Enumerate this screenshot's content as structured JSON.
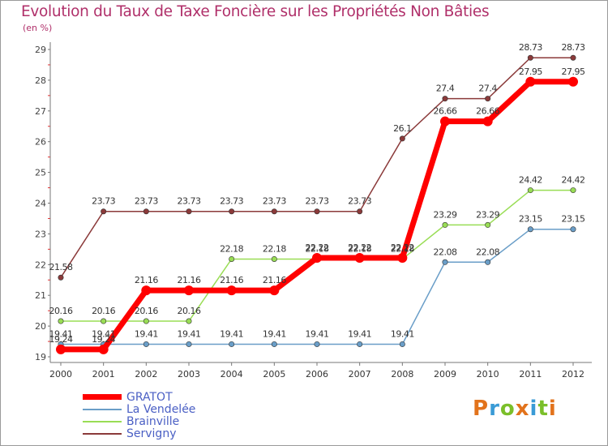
{
  "header": {
    "title": "Evolution du Taux de Taxe Foncière sur les Propriétés Non Bâties",
    "unit": "(en %)"
  },
  "chart_data": {
    "type": "line",
    "title": "Evolution du Taux de Taxe Foncière sur les Propriétés Non Bâties",
    "ylabel": "(en %)",
    "xlabel": "",
    "ylim": [
      19,
      29
    ],
    "yticks": [
      "19",
      "20",
      "21",
      "22",
      "23",
      "24",
      "25",
      "26",
      "27",
      "28",
      "29"
    ],
    "categories": [
      "2000",
      "2001",
      "2002",
      "2003",
      "2004",
      "2005",
      "2006",
      "2007",
      "2008",
      "2009",
      "2010",
      "2011",
      "2012"
    ],
    "grid": false,
    "legend_position": "bottom-left",
    "series": [
      {
        "name": "GRATOT",
        "color": "#ff0000",
        "values": [
          19.24,
          19.24,
          21.16,
          21.16,
          21.16,
          21.16,
          22.22,
          22.22,
          22.22,
          26.66,
          26.66,
          27.95,
          27.95
        ],
        "labels": [
          "19.24",
          "19.24",
          "21.16",
          "21.16",
          "21.16",
          "21.16",
          "22.22",
          "22.22",
          "22.22",
          "26.66",
          "26.66",
          "27.95",
          "27.95"
        ]
      },
      {
        "name": "La Vendelée",
        "color": "#6a9ec8",
        "values": [
          19.41,
          19.41,
          19.41,
          19.41,
          19.41,
          19.41,
          19.41,
          19.41,
          19.41,
          22.08,
          22.08,
          23.15,
          23.15
        ],
        "labels": [
          "19.41",
          "19.41",
          "19.41",
          "19.41",
          "19.41",
          "19.41",
          "19.41",
          "19.41",
          "19.41",
          "22.08",
          "22.08",
          "23.15",
          "23.15"
        ]
      },
      {
        "name": "Brainville",
        "color": "#99dd55",
        "values": [
          20.16,
          20.16,
          20.16,
          20.16,
          22.18,
          22.18,
          22.18,
          22.18,
          22.18,
          23.29,
          23.29,
          24.42,
          24.42
        ],
        "labels": [
          "20.16",
          "20.16",
          "20.16",
          "20.16",
          "22.18",
          "22.18",
          "22.18",
          "22.18",
          "22.18",
          "23.29",
          "23.29",
          "24.42",
          "24.42"
        ]
      },
      {
        "name": "Servigny",
        "color": "#8b3a3a",
        "values": [
          21.58,
          23.73,
          23.73,
          23.73,
          23.73,
          23.73,
          23.73,
          23.73,
          26.1,
          27.4,
          27.4,
          28.73,
          28.73
        ],
        "labels": [
          "21.58",
          "23.73",
          "23.73",
          "23.73",
          "23.73",
          "23.73",
          "23.73",
          "23.73",
          "26.1",
          "27.4",
          "27.4",
          "28.73",
          "28.73"
        ]
      }
    ]
  },
  "legend": {
    "items": [
      "GRATOT",
      "La Vendelée",
      "Brainville",
      "Servigny"
    ]
  },
  "logo": {
    "text": "Proxiti",
    "colors": [
      "#e2731c",
      "#3a9bd6",
      "#7bbf2a",
      "#e2731c",
      "#3a9bd6",
      "#7bbf2a",
      "#e2731c"
    ]
  }
}
